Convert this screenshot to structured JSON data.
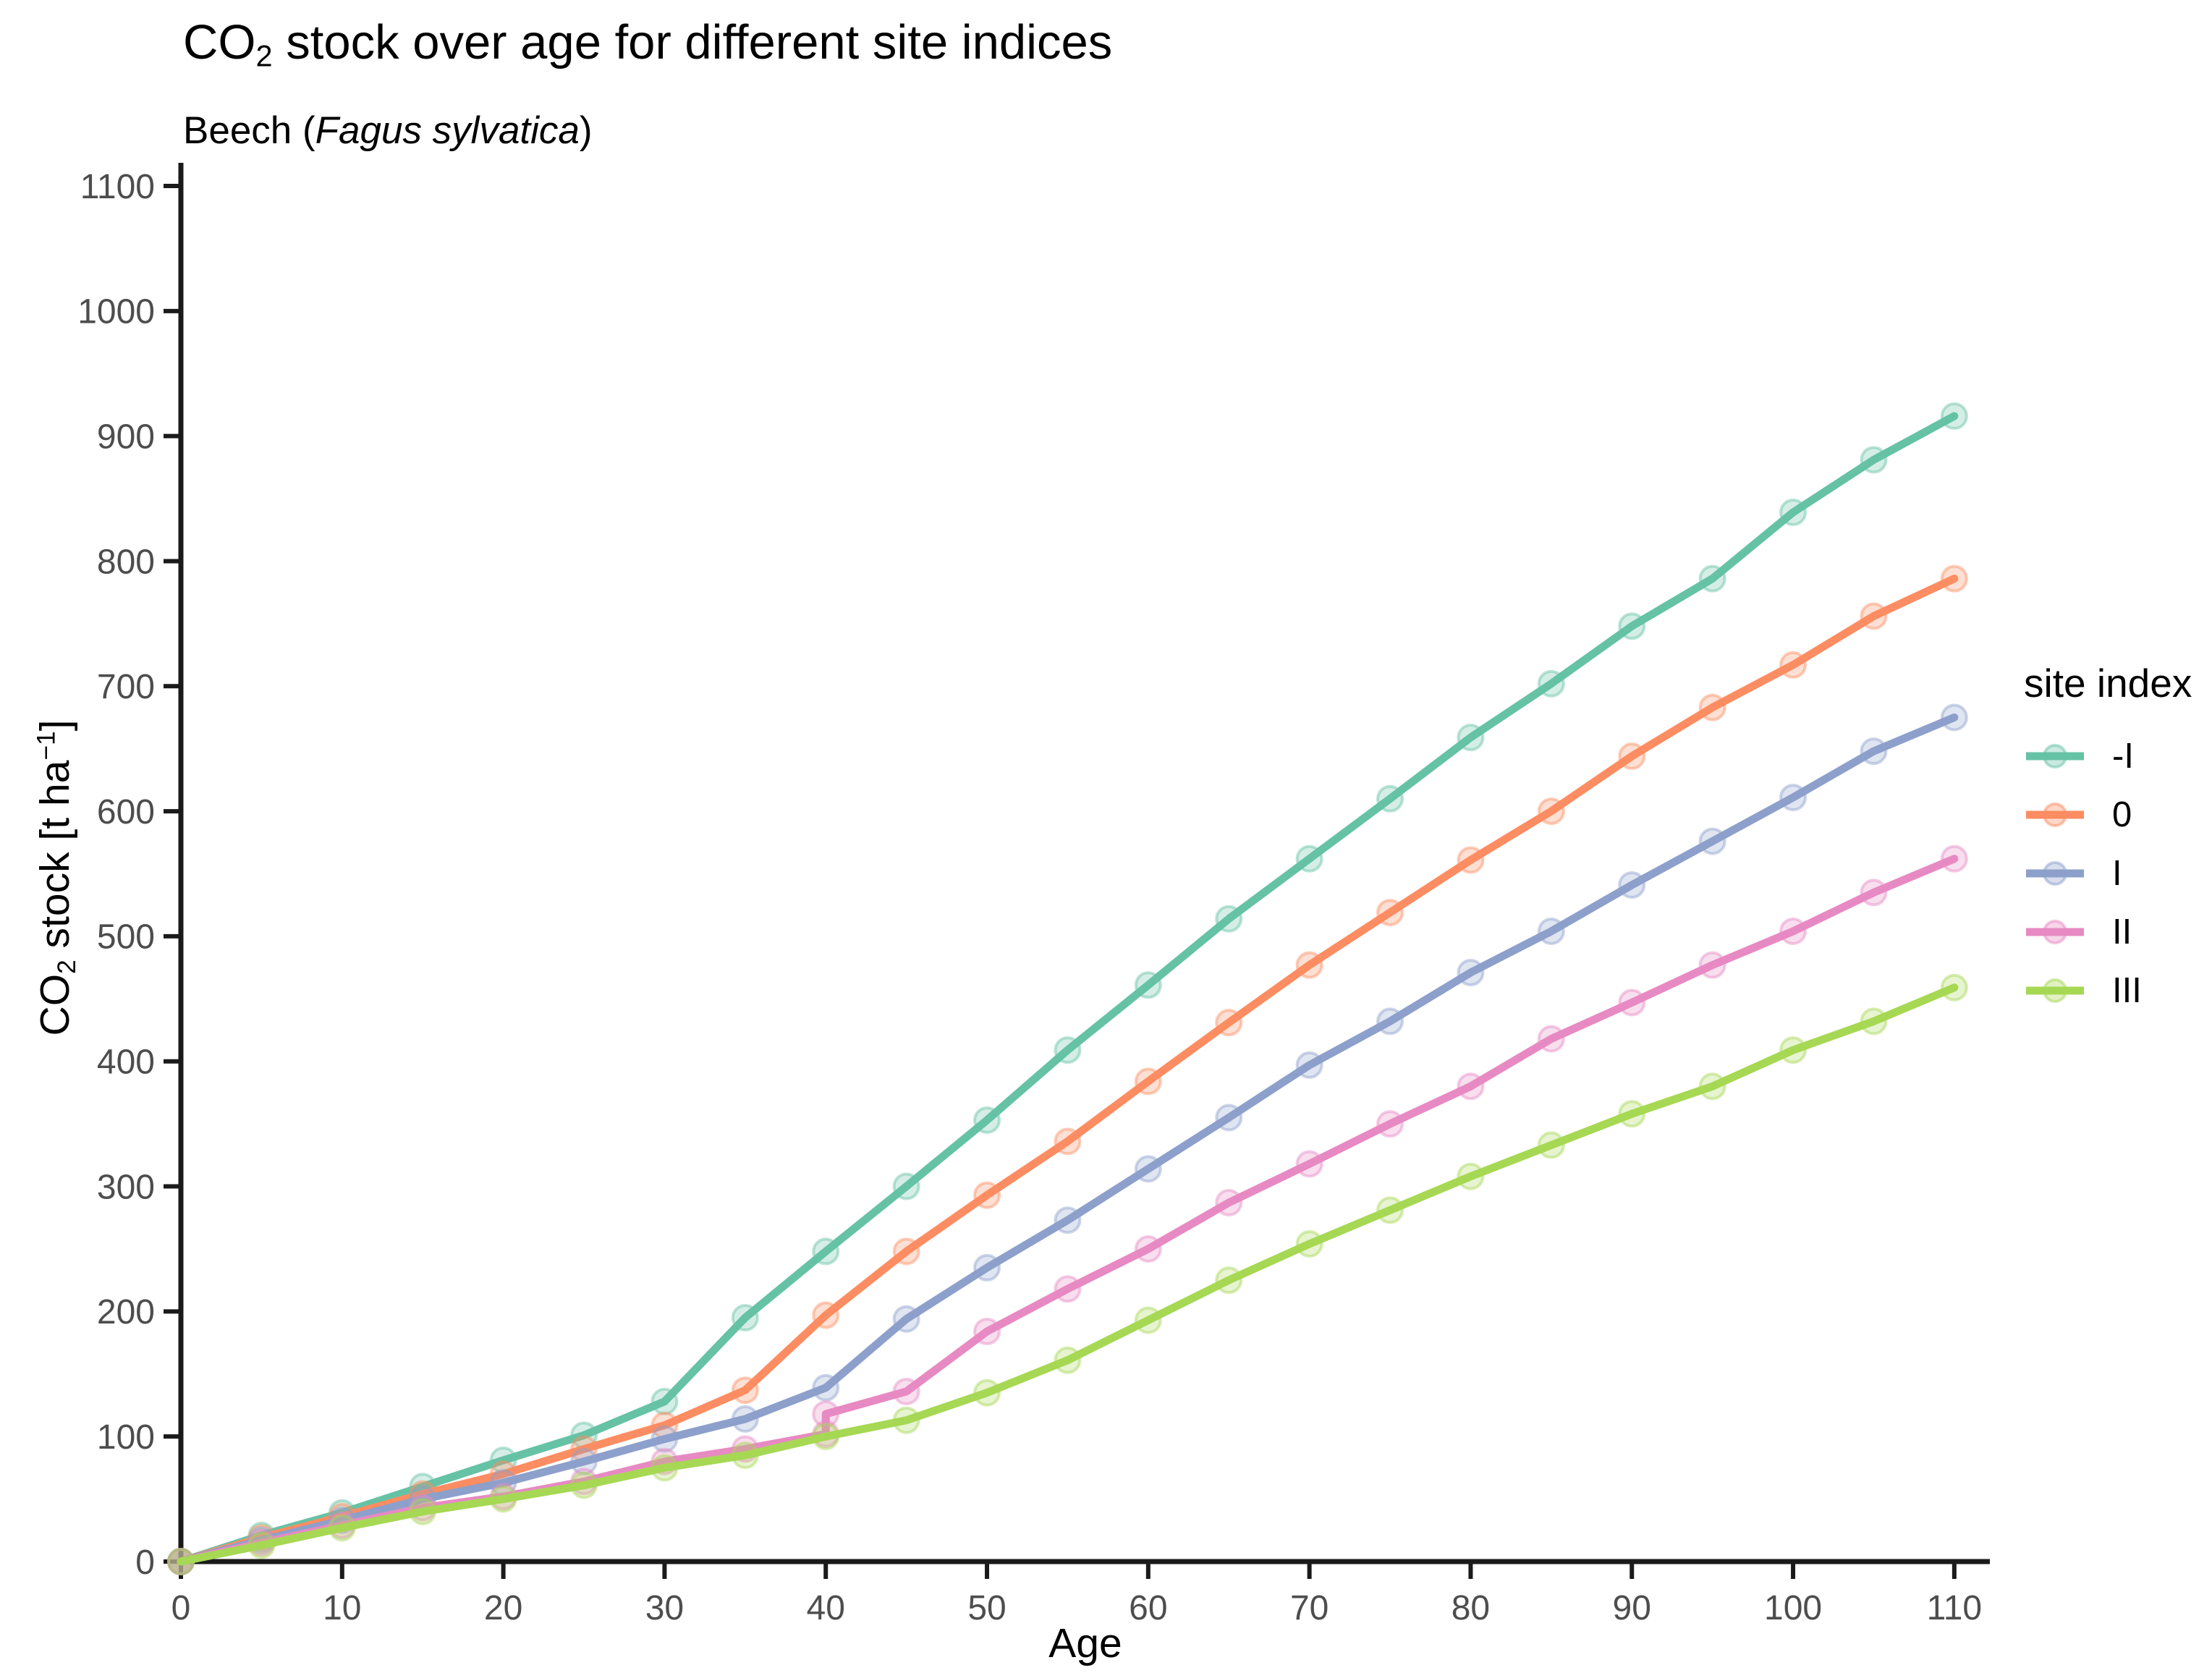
{
  "chart": {
    "title": {
      "prefix": "CO",
      "sub": "2",
      "rest": " stock over age for different site indices"
    },
    "subtitle": {
      "prefix": "Beech (",
      "species": "Fagus sylvatica",
      "suffix": ")"
    },
    "x_axis": {
      "label": "Age",
      "ticks": [
        "0",
        "10",
        "20",
        "30",
        "40",
        "50",
        "60",
        "70",
        "80",
        "90",
        "100",
        "110"
      ]
    },
    "y_axis": {
      "label_prefix": "CO",
      "label_sub": "2",
      "label_mid": " stock [t ha",
      "label_sup": "−1",
      "label_suffix": "]",
      "ticks": [
        "0",
        "100",
        "200",
        "300",
        "400",
        "500",
        "600",
        "700",
        "800",
        "900",
        "1000",
        "1100"
      ]
    },
    "legend": {
      "title": "site index",
      "items": [
        {
          "label": "-I",
          "color": "#66C2A5"
        },
        {
          "label": "0",
          "color": "#FC8D62"
        },
        {
          "label": "I",
          "color": "#8DA0CB"
        },
        {
          "label": "II",
          "color": "#E78AC3"
        },
        {
          "label": "III",
          "color": "#A6D854"
        }
      ]
    },
    "colors": {
      "axis": "#1a1a1a",
      "tick_text": "#4d4d4d"
    }
  },
  "chart_data": {
    "type": "line",
    "title": "CO2 stock over age for different site indices",
    "subtitle": "Beech (Fagus sylvatica)",
    "xlabel": "Age",
    "ylabel": "CO2 stock [t ha^-1]",
    "xlim": [
      0,
      112
    ],
    "ylim": [
      0,
      1135
    ],
    "x_tick_values": [
      0,
      10,
      20,
      30,
      40,
      50,
      60,
      70,
      80,
      90,
      100,
      110
    ],
    "y_tick_values": [
      0,
      100,
      200,
      300,
      400,
      500,
      600,
      700,
      800,
      900,
      1000,
      1100
    ],
    "grid": false,
    "legend_position": "right",
    "legend_title": "site index",
    "marker": "circle-halo",
    "series": [
      {
        "name": "-I",
        "color": "#66C2A5",
        "points": [
          [
            0,
            0
          ],
          [
            5,
            21
          ],
          [
            10,
            39
          ],
          [
            15,
            60
          ],
          [
            20,
            81
          ],
          [
            25,
            101
          ],
          [
            30,
            128
          ],
          [
            35,
            195
          ],
          [
            40,
            248
          ],
          [
            45,
            300
          ],
          [
            50,
            353
          ],
          [
            55,
            409
          ],
          [
            60,
            461
          ],
          [
            65,
            514
          ],
          [
            70,
            562
          ],
          [
            75,
            610
          ],
          [
            80,
            659
          ],
          [
            85,
            702
          ],
          [
            90,
            748
          ],
          [
            95,
            786
          ],
          [
            100,
            839
          ],
          [
            105,
            881
          ],
          [
            110,
            916
          ]
        ]
      },
      {
        "name": "0",
        "color": "#FC8D62",
        "points": [
          [
            0,
            0
          ],
          [
            5,
            19
          ],
          [
            10,
            36
          ],
          [
            15,
            54
          ],
          [
            20,
            70
          ],
          [
            25,
            90
          ],
          [
            30,
            109
          ],
          [
            35,
            137
          ],
          [
            40,
            197
          ],
          [
            45,
            248
          ],
          [
            50,
            293
          ],
          [
            55,
            336
          ],
          [
            60,
            384
          ],
          [
            65,
            431
          ],
          [
            70,
            477
          ],
          [
            75,
            519
          ],
          [
            80,
            561
          ],
          [
            85,
            600
          ],
          [
            90,
            644
          ],
          [
            95,
            683
          ],
          [
            100,
            717
          ],
          [
            105,
            756
          ],
          [
            110,
            786
          ]
        ]
      },
      {
        "name": "I",
        "color": "#8DA0CB",
        "points": [
          [
            0,
            0
          ],
          [
            5,
            17
          ],
          [
            10,
            33
          ],
          [
            15,
            50
          ],
          [
            20,
            63
          ],
          [
            25,
            80
          ],
          [
            30,
            98
          ],
          [
            35,
            114
          ],
          [
            40,
            139
          ],
          [
            45,
            194
          ],
          [
            50,
            235
          ],
          [
            55,
            273
          ],
          [
            60,
            314
          ],
          [
            65,
            355
          ],
          [
            70,
            397
          ],
          [
            75,
            432
          ],
          [
            80,
            471
          ],
          [
            85,
            504
          ],
          [
            90,
            541
          ],
          [
            95,
            576
          ],
          [
            100,
            611
          ],
          [
            105,
            648
          ],
          [
            110,
            675
          ]
        ]
      },
      {
        "name": "II",
        "color": "#E78AC3",
        "points": [
          [
            0,
            0
          ],
          [
            5,
            15
          ],
          [
            10,
            29
          ],
          [
            15,
            43
          ],
          [
            20,
            52
          ],
          [
            25,
            64
          ],
          [
            30,
            80
          ],
          [
            35,
            90
          ],
          [
            40,
            102
          ],
          [
            40,
            118
          ],
          [
            45,
            136
          ],
          [
            50,
            184
          ],
          [
            55,
            218
          ],
          [
            60,
            250
          ],
          [
            65,
            287
          ],
          [
            70,
            318
          ],
          [
            75,
            350
          ],
          [
            80,
            380
          ],
          [
            85,
            418
          ],
          [
            90,
            447
          ],
          [
            95,
            477
          ],
          [
            100,
            504
          ],
          [
            105,
            535
          ],
          [
            110,
            562
          ]
        ]
      },
      {
        "name": "III",
        "color": "#A6D854",
        "points": [
          [
            0,
            0
          ],
          [
            5,
            13
          ],
          [
            10,
            27
          ],
          [
            15,
            40
          ],
          [
            20,
            50
          ],
          [
            25,
            61
          ],
          [
            30,
            75
          ],
          [
            35,
            85
          ],
          [
            40,
            100
          ],
          [
            45,
            113
          ],
          [
            50,
            135
          ],
          [
            55,
            161
          ],
          [
            60,
            193
          ],
          [
            65,
            225
          ],
          [
            70,
            254
          ],
          [
            75,
            281
          ],
          [
            80,
            308
          ],
          [
            85,
            333
          ],
          [
            90,
            358
          ],
          [
            95,
            380
          ],
          [
            100,
            409
          ],
          [
            105,
            432
          ],
          [
            110,
            459
          ]
        ]
      }
    ]
  }
}
